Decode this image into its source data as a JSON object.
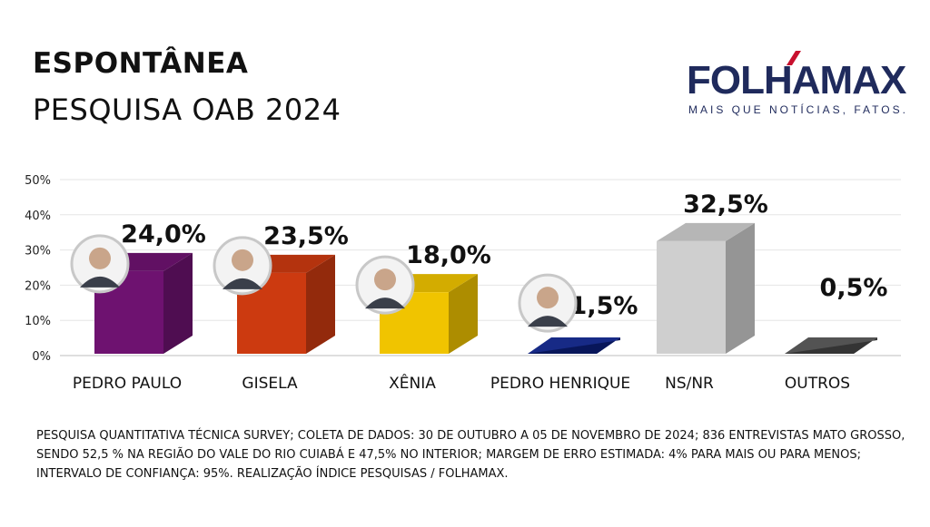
{
  "header": {
    "title": "ESPONTÂNEA",
    "subtitle": "PESQUISA OAB 2024"
  },
  "logo": {
    "word": "FOLHAMAX",
    "tagline": "MAIS QUE NOTÍCIAS, FATOS."
  },
  "chart_data": {
    "type": "bar",
    "categories": [
      "PEDRO PAULO",
      "GISELA",
      "XÊNIA",
      "PEDRO HENRIQUE",
      "NS/NR",
      "OUTROS"
    ],
    "values": [
      24.0,
      23.5,
      18.0,
      1.5,
      32.5,
      0.5
    ],
    "value_labels": [
      "24,0%",
      "23,5%",
      "18,0%",
      "1,5%",
      "32,5%",
      "0,5%"
    ],
    "colors": [
      "#6e1270",
      "#cc3a10",
      "#f0c400",
      "#0b1f80",
      "#cfcfcf",
      "#4a4a4a"
    ],
    "has_photo": [
      true,
      true,
      true,
      true,
      false,
      false
    ],
    "y_ticks": [
      "0%",
      "10%",
      "20%",
      "30%",
      "40%",
      "50%"
    ],
    "ylim": [
      0,
      50
    ],
    "grid": true
  },
  "footnote": {
    "line1": "PESQUISA QUANTITATIVA TÉCNICA SURVEY; COLETA DE DADOS: 30 DE OUTUBRO A 05 DE NOVEMBRO DE 2024; 836 ENTREVISTAS MATO GROSSO,",
    "line2": "SENDO 52,5 % NA REGIÃO DO VALE DO RIO CUIABÁ E 47,5% NO INTERIOR; MARGEM DE ERRO ESTIMADA: 4% PARA MAIS OU PARA MENOS;",
    "line3": "INTERVALO DE CONFIANÇA: 95%. REALIZAÇÃO ÍNDICE PESQUISAS / FOLHAMAX."
  }
}
